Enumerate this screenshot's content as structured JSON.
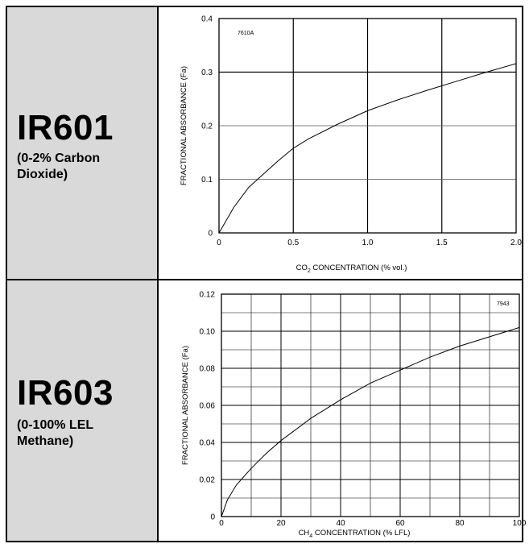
{
  "products": [
    {
      "model": "IR601",
      "desc_line1": "(0-2% Carbon",
      "desc_line2": "Dioxide)"
    },
    {
      "model": "IR603",
      "desc_line1": "(0-100% LEL",
      "desc_line2": "Methane)"
    }
  ],
  "chart_data": [
    {
      "type": "line",
      "figure_id": "7610A",
      "ylabel": "FRACTIONAL ABSORBANCE (Fa)",
      "xlabel_prefix": "CO",
      "xlabel_sub": "2",
      "xlabel_suffix": " CONCENTRATION (% vol.)",
      "xlim": [
        0,
        2.0
      ],
      "ylim": [
        0,
        0.4
      ],
      "x_ticks": [
        0,
        0.5,
        1.0,
        1.5,
        2.0
      ],
      "x_tick_labels": [
        "0",
        "0.5",
        "1.0",
        "1.5",
        "2.0"
      ],
      "y_ticks": [
        0,
        0.1,
        0.2,
        0.3,
        0.4
      ],
      "y_tick_labels": [
        "0",
        "0.1",
        "0.2",
        "0.3",
        "0.4"
      ],
      "grid": true,
      "series": [
        {
          "x": [
            0,
            0.1,
            0.2,
            0.3,
            0.4,
            0.5,
            0.6,
            0.8,
            1.0,
            1.2,
            1.4,
            1.6,
            1.8,
            2.0
          ],
          "y": [
            0,
            0.048,
            0.085,
            0.11,
            0.135,
            0.158,
            0.175,
            0.203,
            0.228,
            0.248,
            0.266,
            0.283,
            0.3,
            0.316
          ]
        }
      ]
    },
    {
      "type": "line",
      "figure_id": "7943",
      "ylabel": "FRACTIONAL ABSORBANCE (Fa)",
      "xlabel_prefix": "CH",
      "xlabel_sub": "4",
      "xlabel_suffix": " CONCENTRATION (% LFL)",
      "xlim": [
        0,
        100
      ],
      "ylim": [
        0,
        0.12
      ],
      "x_ticks": [
        0,
        20,
        40,
        60,
        80,
        100
      ],
      "x_tick_labels": [
        "0",
        "20",
        "40",
        "60",
        "80",
        "100"
      ],
      "y_ticks": [
        0,
        0.02,
        0.04,
        0.06,
        0.08,
        0.1,
        0.12
      ],
      "y_tick_labels": [
        "0",
        "0.02",
        "0.04",
        "0.06",
        "0.08",
        "0.10",
        "0.12"
      ],
      "grid": true,
      "series": [
        {
          "x": [
            0,
            2,
            5,
            10,
            15,
            20,
            30,
            40,
            50,
            60,
            70,
            80,
            90,
            100
          ],
          "y": [
            0,
            0.009,
            0.017,
            0.026,
            0.034,
            0.041,
            0.053,
            0.063,
            0.072,
            0.079,
            0.086,
            0.092,
            0.097,
            0.102
          ]
        }
      ]
    }
  ]
}
